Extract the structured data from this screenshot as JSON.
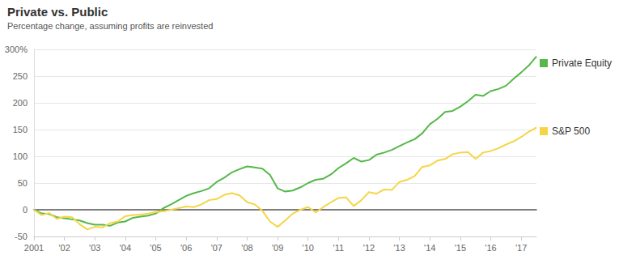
{
  "chart_data": {
    "type": "line",
    "title": "Private vs. Public",
    "subtitle": "Percentage change, assuming profits are reinvested",
    "x": [
      2001,
      2001.25,
      2001.5,
      2001.75,
      2002,
      2002.25,
      2002.5,
      2002.75,
      2003,
      2003.25,
      2003.5,
      2003.75,
      2004,
      2004.25,
      2004.5,
      2004.75,
      2005,
      2005.25,
      2005.5,
      2005.75,
      2006,
      2006.25,
      2006.5,
      2006.75,
      2007,
      2007.25,
      2007.5,
      2007.75,
      2008,
      2008.25,
      2008.5,
      2008.75,
      2009,
      2009.25,
      2009.5,
      2009.75,
      2010,
      2010.25,
      2010.5,
      2010.75,
      2011,
      2011.25,
      2011.5,
      2011.75,
      2012,
      2012.25,
      2012.5,
      2012.75,
      2013,
      2013.25,
      2013.5,
      2013.75,
      2014,
      2014.25,
      2014.5,
      2014.75,
      2015,
      2015.25,
      2015.5,
      2015.75,
      2016,
      2016.25,
      2016.5,
      2016.75,
      2017,
      2017.25,
      2017.5
    ],
    "series": [
      {
        "name": "Private Equity",
        "color": "#55b848",
        "values": [
          0,
          -7,
          -8,
          -14,
          -16,
          -18,
          -20,
          -25,
          -28,
          -28,
          -30,
          -24,
          -22,
          -15,
          -13,
          -11,
          -7,
          3,
          10,
          18,
          26,
          31,
          35,
          40,
          52,
          60,
          70,
          76,
          81,
          79,
          77,
          65,
          40,
          34,
          36,
          42,
          50,
          56,
          58,
          66,
          78,
          87,
          97,
          90,
          93,
          103,
          107,
          112,
          119,
          126,
          132,
          143,
          160,
          170,
          183,
          185,
          193,
          203,
          215,
          213,
          222,
          226,
          232,
          245,
          257,
          270,
          287
        ]
      },
      {
        "name": "S&P 500",
        "color": "#f5d547",
        "values": [
          0,
          -10,
          -6,
          -17,
          -13,
          -14,
          -27,
          -37,
          -32,
          -33,
          -25,
          -22,
          -12,
          -10,
          -9,
          -7,
          -4,
          -3,
          0,
          3,
          6,
          5,
          10,
          18,
          20,
          28,
          31,
          27,
          14,
          10,
          -2,
          -22,
          -32,
          -20,
          -7,
          0,
          5,
          -5,
          5,
          14,
          22,
          23,
          7,
          18,
          33,
          30,
          38,
          37,
          52,
          56,
          63,
          80,
          83,
          92,
          95,
          104,
          107,
          108,
          95,
          107,
          110,
          115,
          122,
          128,
          136,
          146,
          154
        ]
      }
    ],
    "xlim": [
      2001,
      2017.5
    ],
    "xticks": [
      {
        "value": 2001,
        "label": "2001"
      },
      {
        "value": 2002,
        "label": "'02"
      },
      {
        "value": 2003,
        "label": "'03"
      },
      {
        "value": 2004,
        "label": "'04"
      },
      {
        "value": 2005,
        "label": "'05"
      },
      {
        "value": 2006,
        "label": "'06"
      },
      {
        "value": 2007,
        "label": "'07"
      },
      {
        "value": 2008,
        "label": "'08"
      },
      {
        "value": 2009,
        "label": "'09"
      },
      {
        "value": 2010,
        "label": "'10"
      },
      {
        "value": 2011,
        "label": "'11"
      },
      {
        "value": 2012,
        "label": "'12"
      },
      {
        "value": 2013,
        "label": "'13"
      },
      {
        "value": 2014,
        "label": "'14"
      },
      {
        "value": 2015,
        "label": "'15"
      },
      {
        "value": 2016,
        "label": "'16"
      },
      {
        "value": 2017,
        "label": "'17"
      }
    ],
    "ylim": [
      -50,
      300
    ],
    "yticks": [
      -50,
      0,
      50,
      100,
      150,
      200,
      250,
      {
        "value": 300,
        "label": "300%"
      }
    ],
    "grid": true,
    "legend": "right"
  }
}
